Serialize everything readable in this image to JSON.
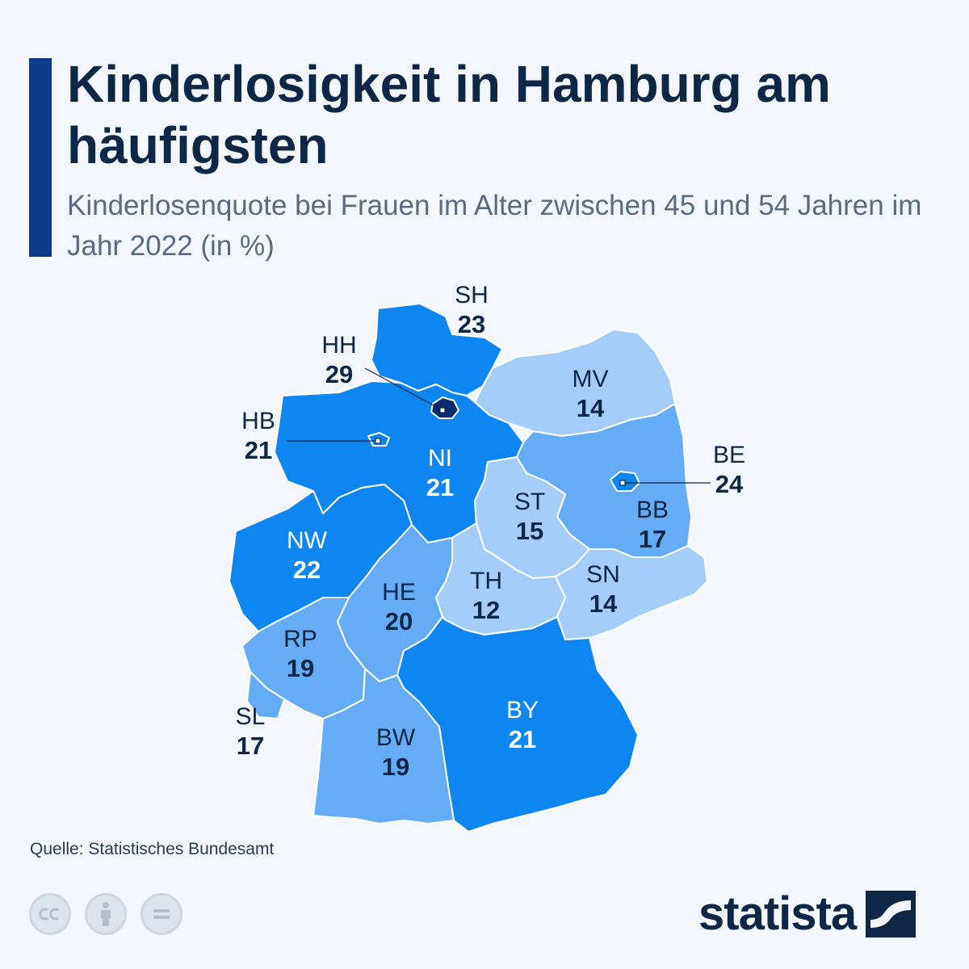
{
  "header": {
    "title": "Kinderlosigkeit in Hamburg am häufigsten",
    "subtitle": "Kinderlosenquote bei Frauen im Alter zwischen 45 und 54 Jahren im Jahr 2022 (in %)"
  },
  "colors": {
    "accent": "#0d3a8a",
    "darkest": "#0a2a6e",
    "dark": "#0d86f2",
    "medium": "#65acf7",
    "light": "#a5cdf9",
    "text": "#0f2746"
  },
  "chart_data": {
    "type": "choropleth",
    "unit": "%",
    "regions": [
      {
        "code": "SH",
        "value": 23
      },
      {
        "code": "HH",
        "value": 29
      },
      {
        "code": "MV",
        "value": 14
      },
      {
        "code": "HB",
        "value": 21
      },
      {
        "code": "NI",
        "value": 21
      },
      {
        "code": "BE",
        "value": 24
      },
      {
        "code": "ST",
        "value": 15
      },
      {
        "code": "BB",
        "value": 17
      },
      {
        "code": "NW",
        "value": 22
      },
      {
        "code": "SN",
        "value": 14
      },
      {
        "code": "HE",
        "value": 20
      },
      {
        "code": "TH",
        "value": 12
      },
      {
        "code": "RP",
        "value": 19
      },
      {
        "code": "SL",
        "value": 17
      },
      {
        "code": "BY",
        "value": 21
      },
      {
        "code": "BW",
        "value": 19
      }
    ]
  },
  "labels": {
    "SH": {
      "code": "SH",
      "value": "23"
    },
    "HH": {
      "code": "HH",
      "value": "29"
    },
    "MV": {
      "code": "MV",
      "value": "14"
    },
    "HB": {
      "code": "HB",
      "value": "21"
    },
    "NI": {
      "code": "NI",
      "value": "21"
    },
    "BE": {
      "code": "BE",
      "value": "24"
    },
    "ST": {
      "code": "ST",
      "value": "15"
    },
    "BB": {
      "code": "BB",
      "value": "17"
    },
    "NW": {
      "code": "NW",
      "value": "22"
    },
    "SN": {
      "code": "SN",
      "value": "14"
    },
    "HE": {
      "code": "HE",
      "value": "20"
    },
    "TH": {
      "code": "TH",
      "value": "12"
    },
    "RP": {
      "code": "RP",
      "value": "19"
    },
    "SL": {
      "code": "SL",
      "value": "17"
    },
    "BY": {
      "code": "BY",
      "value": "21"
    },
    "BW": {
      "code": "BW",
      "value": "19"
    }
  },
  "footer": {
    "source": "Quelle: Statistisches Bundesamt",
    "license_icons": [
      "cc-icon",
      "attribution-icon",
      "no-derivatives-icon"
    ],
    "brand": "statista"
  }
}
